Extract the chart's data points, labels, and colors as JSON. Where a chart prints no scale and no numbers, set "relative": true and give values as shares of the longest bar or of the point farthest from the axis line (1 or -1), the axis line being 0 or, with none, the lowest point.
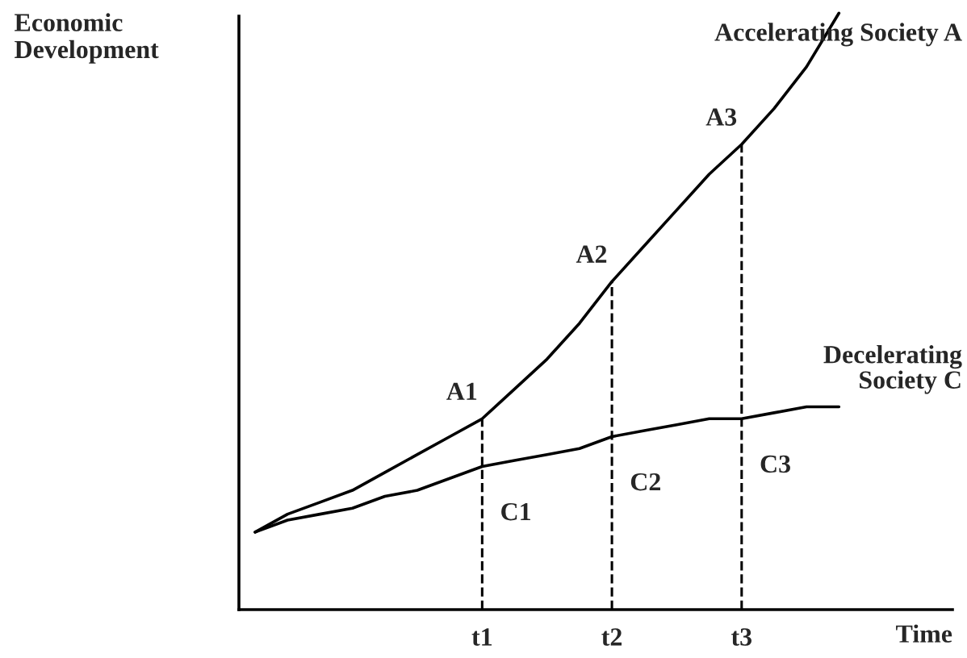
{
  "chart_data": {
    "type": "line",
    "relative": true,
    "xlabel": "Time",
    "ylabel": "Economic\nDevelopment",
    "categories": [
      null,
      null,
      null,
      null,
      null,
      null,
      null,
      "t1",
      null,
      null,
      null,
      "t2",
      null,
      null,
      null,
      "t3",
      null,
      null,
      null,
      null,
      null,
      null
    ],
    "series": [
      {
        "name": "Accelerating Society A",
        "color": "#000000",
        "values": [
          0.13,
          0.16,
          0.18,
          0.2,
          0.23,
          0.26,
          0.29,
          0.32,
          0.37,
          0.42,
          0.48,
          0.55,
          0.61,
          0.67,
          0.73,
          0.78,
          0.84,
          0.91,
          1.0,
          null,
          null,
          null
        ]
      },
      {
        "name": "Decelerating\nSociety C",
        "color": "#000000",
        "values": [
          0.13,
          0.15,
          0.16,
          0.17,
          0.19,
          0.2,
          0.22,
          0.24,
          0.25,
          0.26,
          0.27,
          0.29,
          0.3,
          0.31,
          0.32,
          0.32,
          0.33,
          0.34,
          0.34,
          null,
          null,
          null
        ]
      }
    ],
    "ref_lines": [
      {
        "axis": "x",
        "value": "t1",
        "line_style": "dashed"
      },
      {
        "axis": "x",
        "value": "t2",
        "line_style": "dashed"
      },
      {
        "axis": "x",
        "value": "t3",
        "line_style": "dashed"
      }
    ],
    "annotations": [
      {
        "text": "A1",
        "x": "t1",
        "y": 0.32
      },
      {
        "text": "A2",
        "x": "t2",
        "y": 0.55
      },
      {
        "text": "A3",
        "x": "t3",
        "y": 0.78
      },
      {
        "text": "C1",
        "x": "t1",
        "y": 0.24
      },
      {
        "text": "C2",
        "x": "t2",
        "y": 0.29
      },
      {
        "text": "C3",
        "x": "t3",
        "y": 0.32
      }
    ],
    "grid": false,
    "legend": false,
    "marker": "none",
    "line_style": "solid"
  }
}
